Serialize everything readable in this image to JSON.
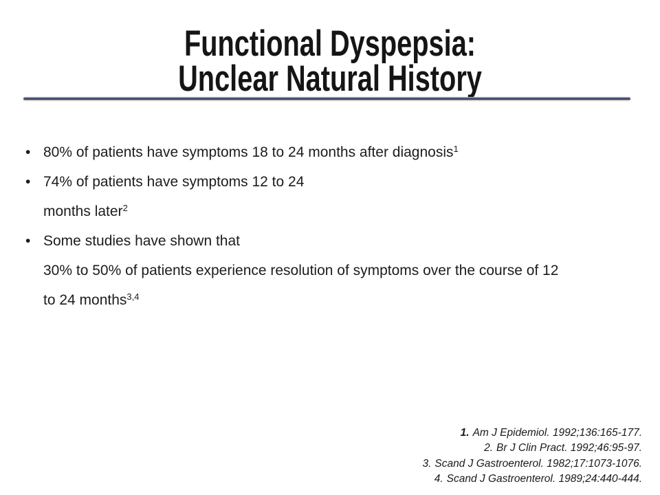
{
  "title": {
    "line1": "Functional Dyspepsia:",
    "line2": "Unclear Natural History"
  },
  "divider_color": "#2e3d63",
  "bullets": [
    {
      "lines": [
        {
          "text": "80% of patients have symptoms 18 to 24 months after diagnosis",
          "sup": "1"
        }
      ]
    },
    {
      "lines": [
        {
          "text": "74% of patients have symptoms 12 to 24",
          "sup": ""
        },
        {
          "text": "months later",
          "sup": "2"
        }
      ]
    },
    {
      "lines": [
        {
          "text": "Some studies have shown that",
          "sup": ""
        },
        {
          "text": "30% to 50% of patients experience resolution of symptoms over the course of 12",
          "sup": ""
        },
        {
          "text": "to 24 months",
          "sup": "3,4"
        }
      ]
    }
  ],
  "references": [
    {
      "num": "1.",
      "text": "Am J Epidemiol. 1992;136:165-177."
    },
    {
      "num": "2.",
      "text": "Br J Clin Pract. 1992;46:95-97."
    },
    {
      "num": "3.",
      "text": "Scand J Gastroenterol. 1982;17:1073-1076."
    },
    {
      "num": "4.",
      "text": "Scand J Gastroenterol. 1989;24:440-444."
    }
  ]
}
